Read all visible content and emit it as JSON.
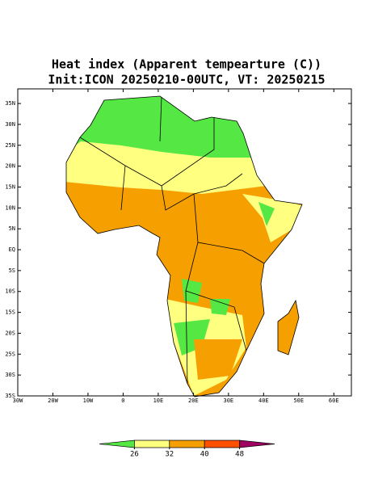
{
  "title": "Heat index (Apparent tempearture (C))",
  "subtitle": "Init:ICON 20250210-00UTC, VT: 20250215",
  "map": {
    "xlim": [
      -30,
      65
    ],
    "ylim": [
      -35,
      38.5
    ],
    "xticks": [
      {
        "value": -30,
        "label": "30W"
      },
      {
        "value": -20,
        "label": "20W"
      },
      {
        "value": -10,
        "label": "10W"
      },
      0,
      {
        "value": 10,
        "label": "10E"
      },
      {
        "value": 20,
        "label": "20E"
      },
      {
        "value": 30,
        "label": "30E"
      },
      {
        "value": 40,
        "label": "40E"
      },
      {
        "value": 50,
        "label": "50E"
      },
      {
        "value": 60,
        "label": "60E"
      }
    ],
    "yticks": [
      {
        "value": 35,
        "label": "35N"
      },
      {
        "value": 30,
        "label": "30N"
      },
      {
        "value": 25,
        "label": "25N"
      },
      {
        "value": 20,
        "label": "20N"
      },
      {
        "value": 15,
        "label": "15N"
      },
      {
        "value": 10,
        "label": "10N"
      },
      {
        "value": 5,
        "label": "5N"
      },
      {
        "value": 0,
        "label": "EQ"
      },
      {
        "value": -5,
        "label": "5S"
      },
      {
        "value": -10,
        "label": "10S"
      },
      {
        "value": -15,
        "label": "15S"
      },
      {
        "value": -20,
        "label": "20S"
      },
      {
        "value": -25,
        "label": "25S"
      },
      {
        "value": -30,
        "label": "30S"
      },
      {
        "value": -35,
        "label": "35S"
      }
    ]
  },
  "colorbar": {
    "ticks": [
      26,
      32,
      40,
      48
    ],
    "colors": [
      "#55e845",
      "#ffff80",
      "#f5a000",
      "#ff5000",
      "#a00060"
    ]
  }
}
